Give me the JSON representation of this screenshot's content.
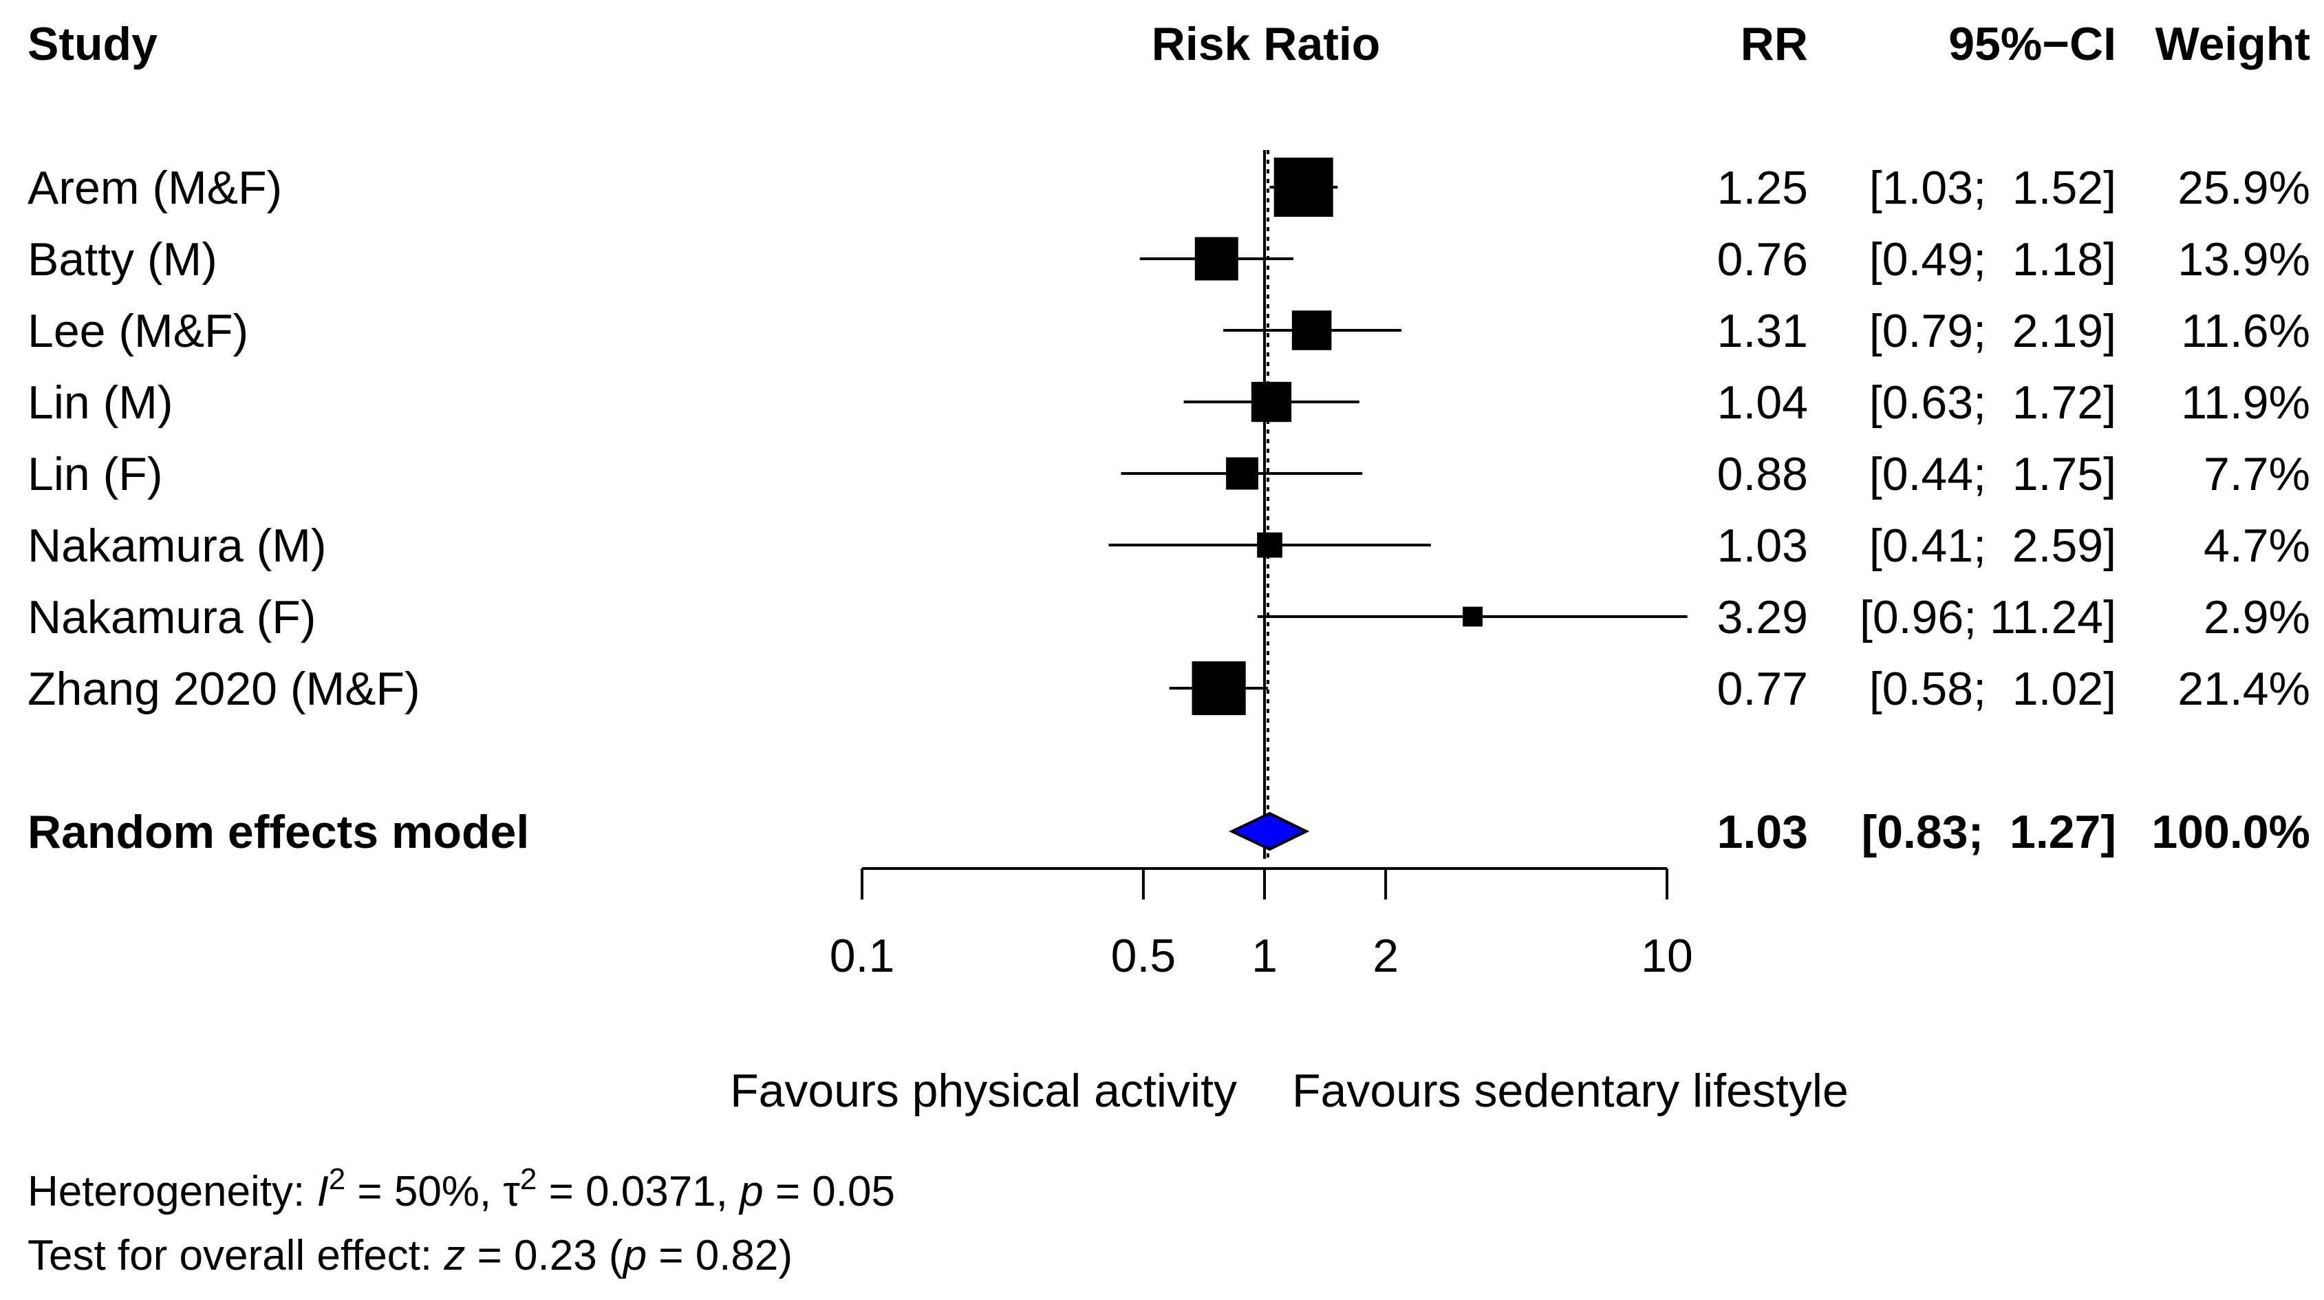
{
  "chart_data": {
    "type": "forest",
    "title": "Risk Ratio",
    "scale": "log",
    "xlim": [
      0.1,
      10
    ],
    "xticks": [
      0.1,
      0.5,
      1,
      2,
      10
    ],
    "xtick_labels": [
      "0.1",
      "0.5",
      "1",
      "2",
      "10"
    ],
    "reference_value": 1,
    "headers": {
      "study": "Study",
      "effect": "Risk Ratio",
      "rr": "RR",
      "ci": "95%−CI",
      "weight": "Weight"
    },
    "studies": [
      {
        "name": "Arem (M&F)",
        "rr": 1.25,
        "lower": 1.03,
        "upper": 1.52,
        "weight": 25.9,
        "rr_text": "1.25",
        "ci_text": "[1.03;  1.52]",
        "weight_text": "25.9%"
      },
      {
        "name": "Batty (M)",
        "rr": 0.76,
        "lower": 0.49,
        "upper": 1.18,
        "weight": 13.9,
        "rr_text": "0.76",
        "ci_text": "[0.49;  1.18]",
        "weight_text": "13.9%"
      },
      {
        "name": "Lee (M&F)",
        "rr": 1.31,
        "lower": 0.79,
        "upper": 2.19,
        "weight": 11.6,
        "rr_text": "1.31",
        "ci_text": "[0.79;  2.19]",
        "weight_text": "11.6%"
      },
      {
        "name": "Lin (M)",
        "rr": 1.04,
        "lower": 0.63,
        "upper": 1.72,
        "weight": 11.9,
        "rr_text": "1.04",
        "ci_text": "[0.63;  1.72]",
        "weight_text": "11.9%"
      },
      {
        "name": "Lin (F)",
        "rr": 0.88,
        "lower": 0.44,
        "upper": 1.75,
        "weight": 7.7,
        "rr_text": "0.88",
        "ci_text": "[0.44;  1.75]",
        "weight_text": "7.7%"
      },
      {
        "name": "Nakamura (M)",
        "rr": 1.03,
        "lower": 0.41,
        "upper": 2.59,
        "weight": 4.7,
        "rr_text": "1.03",
        "ci_text": "[0.41;  2.59]",
        "weight_text": "4.7%"
      },
      {
        "name": "Nakamura (F)",
        "rr": 3.29,
        "lower": 0.96,
        "upper": 11.24,
        "weight": 2.9,
        "rr_text": "3.29",
        "ci_text": "[0.96; 11.24]",
        "weight_text": "2.9%"
      },
      {
        "name": "Zhang 2020 (M&F)",
        "rr": 0.77,
        "lower": 0.58,
        "upper": 1.02,
        "weight": 21.4,
        "rr_text": "0.77",
        "ci_text": "[0.58;  1.02]",
        "weight_text": "21.4%"
      }
    ],
    "summary": {
      "name": "Random effects model",
      "rr": 1.03,
      "lower": 0.83,
      "upper": 1.27,
      "rr_text": "1.03",
      "ci_text": "[0.83;  1.27]",
      "weight_text": "100.0%",
      "color": "#0000ff"
    },
    "favours_left": "Favours physical activity",
    "favours_right": "Favours sedentary lifestyle",
    "heterogeneity": {
      "prefix": "Heterogeneity: ",
      "i2_symbol": "I",
      "i2_value": " = 50%, ",
      "tau2_symbol": "τ",
      "tau2_value": " = 0.0371, ",
      "p_symbol": "p",
      "p_value": " = 0.05",
      "superscript": "2"
    },
    "overall_effect": {
      "prefix": "Test for overall effect: ",
      "z_symbol": "z",
      "z_value": " = 0.23 (",
      "p_symbol": "p",
      "p_value": " = 0.82)"
    }
  }
}
